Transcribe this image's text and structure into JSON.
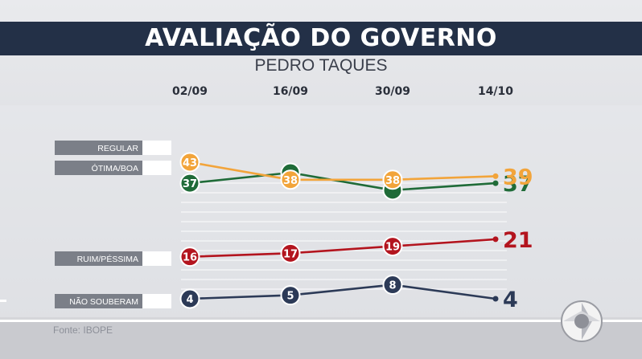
{
  "header": {
    "title": "AVALIAÇÃO  DO GOVERNO",
    "subtitle": "PEDRO TAQUES"
  },
  "footer": {
    "source": "Fonte: IBOPE"
  },
  "colors": {
    "title_bar": "#233047",
    "regular": "#f2a43a",
    "otima_boa": "#1f6b38",
    "ruim_pessima": "#b3141e",
    "nao_souberam": "#2c3a57"
  },
  "chart_data": {
    "type": "line",
    "title": "AVALIAÇÃO  DO GOVERNO",
    "subtitle": "PEDRO TAQUES",
    "categories": [
      "02/09",
      "16/09",
      "30/09",
      "14/10"
    ],
    "series": [
      {
        "name": "REGULAR",
        "values": [
          43,
          38,
          38,
          39
        ],
        "color": "#f2a43a"
      },
      {
        "name": "ÓTIMA/BOA",
        "values": [
          37,
          40,
          35,
          37
        ],
        "color": "#1f6b38"
      },
      {
        "name": "RUIM/PÉSSIMA",
        "values": [
          16,
          17,
          19,
          21
        ],
        "color": "#b3141e"
      },
      {
        "name": "NÃO SOUBERAM",
        "values": [
          4,
          5,
          8,
          4
        ],
        "color": "#2c3a57"
      }
    ],
    "data_labels": {
      "REGULAR": [
        "43",
        "38",
        "38",
        "39"
      ],
      "ÓTIMA/BOA": [
        "37",
        "",
        "",
        "37"
      ],
      "RUIM/PÉSSIMA": [
        "16",
        "17",
        "19",
        "21"
      ],
      "NÃO SOUBERAM": [
        "4",
        "5",
        "8",
        "4"
      ]
    },
    "legend_placement": "left",
    "grid": true
  }
}
